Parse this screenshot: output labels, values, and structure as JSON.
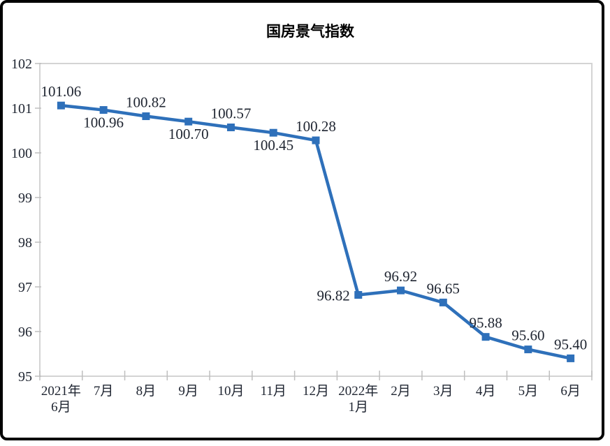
{
  "chart_data": {
    "type": "line",
    "title": "国房景气指数",
    "series_name": "国房景气指数",
    "categories": [
      "2021年\n6月",
      "7月",
      "8月",
      "9月",
      "10月",
      "11月",
      "12月",
      "2022年\n1月",
      "2月",
      "3月",
      "4月",
      "5月",
      "6月"
    ],
    "values": [
      101.06,
      100.96,
      100.82,
      100.7,
      100.57,
      100.45,
      100.28,
      96.82,
      96.92,
      96.65,
      95.88,
      95.6,
      95.4
    ],
    "data_labels": [
      "101.06",
      "100.96",
      "100.82",
      "100.70",
      "100.57",
      "100.45",
      "100.28",
      "96.82",
      "96.92",
      "96.65",
      "95.88",
      "95.60",
      "95.40"
    ],
    "label_positions": [
      "above",
      "below",
      "above",
      "below",
      "above",
      "below",
      "above",
      "left",
      "above",
      "above",
      "above",
      "above",
      "above"
    ],
    "yticks": [
      95,
      96,
      97,
      98,
      99,
      100,
      101,
      102
    ],
    "ylim": [
      95,
      102
    ],
    "xlabel": "",
    "ylabel": "",
    "grid": false,
    "legend": "none",
    "marker": "square",
    "line_color": "#2E70BA",
    "marker_color": "#2E70BA",
    "text_color": "#1E2430",
    "plot_border_color": "#D4D4D4",
    "tick_color": "#BFBFBF"
  }
}
